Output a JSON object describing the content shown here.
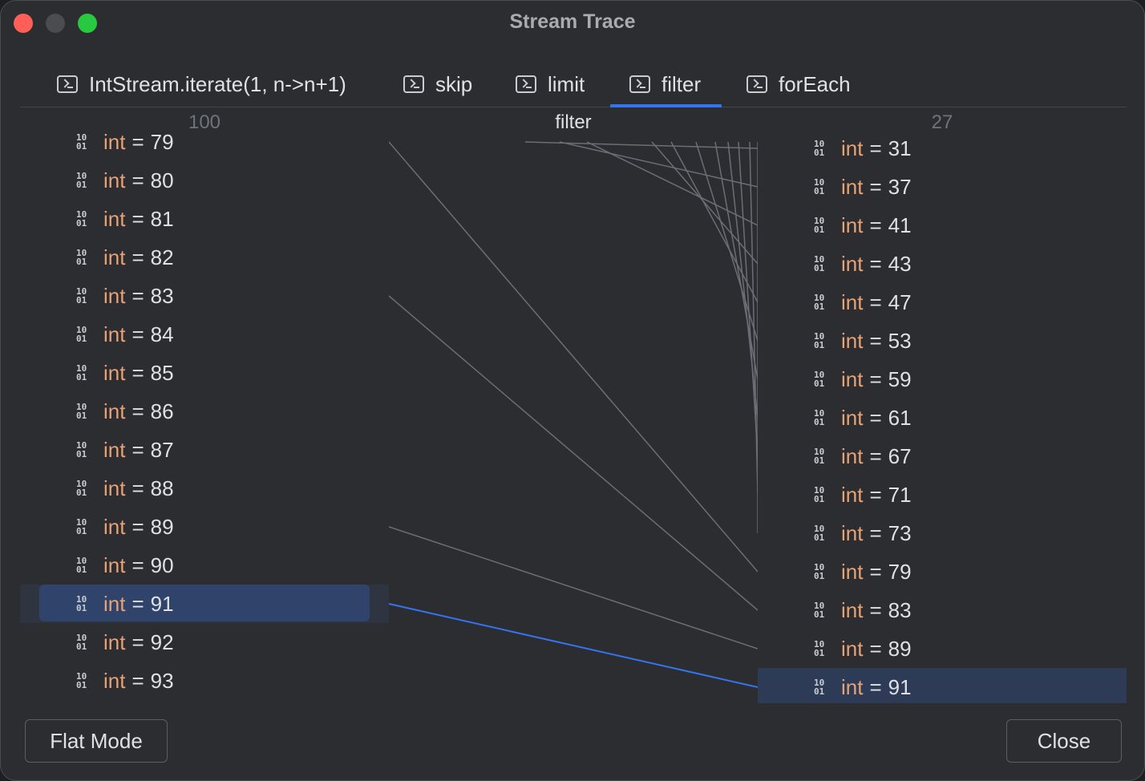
{
  "window": {
    "title": "Stream Trace"
  },
  "tabs": [
    {
      "label": "IntStream.iterate(1, n->n+1)",
      "icon": "terminal-icon"
    },
    {
      "label": "skip",
      "icon": "terminal-icon"
    },
    {
      "label": "limit",
      "icon": "terminal-icon"
    },
    {
      "label": "filter",
      "icon": "terminal-icon",
      "active": true
    },
    {
      "label": "forEach",
      "icon": "terminal-icon"
    }
  ],
  "columns": {
    "left_count": "100",
    "middle_label": "filter",
    "right_count": "27"
  },
  "left_list": {
    "type": "int",
    "values": [
      "79",
      "80",
      "81",
      "82",
      "83",
      "84",
      "85",
      "86",
      "87",
      "88",
      "89",
      "90",
      "91",
      "92",
      "93"
    ],
    "selected": "91"
  },
  "right_list": {
    "type": "int",
    "values": [
      "31",
      "37",
      "41",
      "43",
      "47",
      "53",
      "59",
      "61",
      "67",
      "71",
      "73",
      "79",
      "83",
      "89",
      "91"
    ],
    "selected": "91"
  },
  "binary_icon": {
    "top": "10",
    "bottom": "01"
  },
  "buttons": {
    "flat_mode": "Flat Mode",
    "close": "Close"
  },
  "colors": {
    "accent": "#3574f0",
    "type_keyword": "#e8a276",
    "selection": "#2f436b"
  }
}
